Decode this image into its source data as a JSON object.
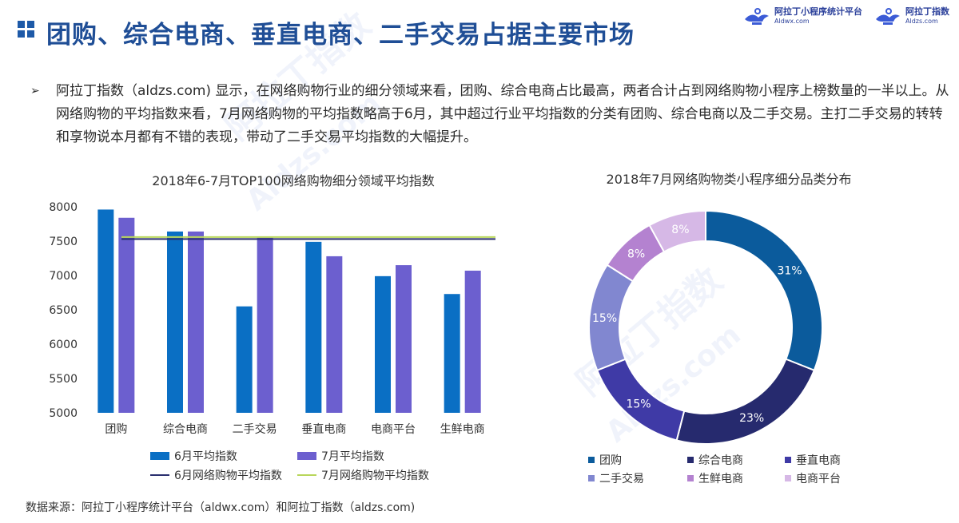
{
  "page": {
    "title": "团购、综合电商、垂直电商、二手交易占据主要市场",
    "summary": "阿拉丁指数（aldzs.com) 显示，在网络购物行业的细分领域来看，团购、综合电商占比最高，两者合计占到网络购物小程序上榜数量的一半以上。从网络购物的平均指数来看，7月网络购物的平均指数略高于6月，其中超过行业平均指数的分类有团购、综合电商以及二手交易。主打二手交易的转转和享物说本月都有不错的表现，带动了二手交易平均指数的大幅提升。",
    "footer": "数据来源：阿拉丁小程序统计平台（aldwx.com）和阿拉丁指数（aldzs.com)"
  },
  "logos": [
    {
      "name": "阿拉丁小程序统计平台",
      "url": "Aldwx.com",
      "icon": "aladdin-lamp-icon"
    },
    {
      "name": "阿拉丁指数",
      "url": "Aldzs.com",
      "icon": "aladdin-lamp-icon"
    }
  ],
  "watermark": {
    "line1": "阿拉丁指数",
    "line2": "Aldzs.com"
  },
  "colors": {
    "title": "#1f4e96",
    "june_bar": "#0a6fc4",
    "july_bar": "#6c5fcf",
    "june_avg_line": "#2a2f6e",
    "july_avg_line": "#b8d65a"
  },
  "chart_data": [
    {
      "type": "bar",
      "title": "2018年6-7月TOP100网络购物细分领域平均指数",
      "categories": [
        "团购",
        "综合电商",
        "二手交易",
        "垂直电商",
        "电商平台",
        "生鲜电商"
      ],
      "series": [
        {
          "name": "6月平均指数",
          "values": [
            7960,
            7640,
            6550,
            7490,
            6990,
            6730
          ]
        },
        {
          "name": "7月平均指数",
          "values": [
            7840,
            7640,
            7550,
            7280,
            7150,
            7070
          ]
        }
      ],
      "reference_lines": [
        {
          "name": "6月网络购物平均指数",
          "value": 7530
        },
        {
          "name": "7月网络购物平均指数",
          "value": 7560
        }
      ],
      "ylim": [
        5000,
        8000
      ],
      "yticks": [
        5000,
        5500,
        6000,
        6500,
        7000,
        7500,
        8000
      ],
      "grid": false,
      "legend": "bottom"
    },
    {
      "type": "pie",
      "title": "2018年7月网络购物类小程序细分品类分布",
      "donut": true,
      "slices": [
        {
          "label": "团购",
          "value": 31,
          "display": "31%",
          "color": "#0b5b9c"
        },
        {
          "label": "综合电商",
          "value": 23,
          "display": "23%",
          "color": "#262a6e"
        },
        {
          "label": "垂直电商",
          "value": 15,
          "display": "15%",
          "color": "#3f3aa6"
        },
        {
          "label": "二手交易",
          "value": 15,
          "display": "15%",
          "color": "#8187d0"
        },
        {
          "label": "生鲜电商",
          "value": 8,
          "display": "8%",
          "color": "#b482d0"
        },
        {
          "label": "电商平台",
          "value": 8,
          "display": "8%",
          "color": "#d6b8e6"
        }
      ],
      "legend": "bottom"
    }
  ]
}
